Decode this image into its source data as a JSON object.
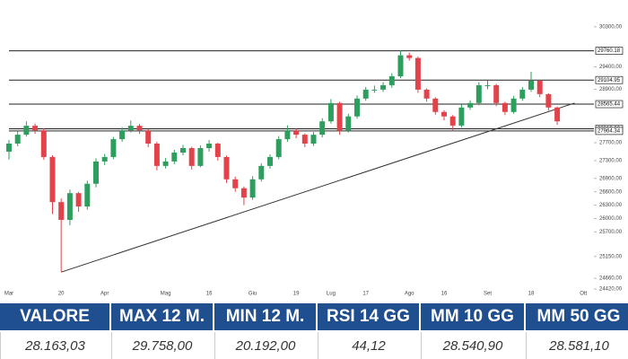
{
  "chart_data": {
    "type": "candlestick",
    "categories": [
      "Mar",
      null,
      null,
      null,
      null,
      null,
      "20",
      null,
      null,
      null,
      null,
      "Apr",
      null,
      null,
      null,
      null,
      null,
      null,
      "Mag",
      null,
      null,
      null,
      null,
      "16",
      null,
      null,
      null,
      null,
      "Giu",
      null,
      null,
      null,
      null,
      "19",
      null,
      null,
      null,
      "Lug",
      null,
      null,
      null,
      "17",
      null,
      null,
      null,
      null,
      "Ago",
      null,
      null,
      null,
      "16",
      null,
      null,
      null,
      null,
      "Set",
      null,
      null,
      null,
      null,
      "18",
      null,
      null,
      null,
      null,
      null,
      "Ott"
    ],
    "open": [
      27500,
      27680,
      27880,
      28080,
      27980,
      27380,
      26370,
      25970,
      26570,
      26270,
      26780,
      27280,
      27380,
      27780,
      27980,
      28080,
      27980,
      27680,
      27180,
      27280,
      27480,
      27580,
      27180,
      27580,
      27680,
      27380,
      26880,
      26680,
      26470,
      26880,
      27180,
      27380,
      27780,
      27980,
      27880,
      27680,
      27880,
      28180,
      28590,
      27980,
      28290,
      28690,
      28890,
      28890,
      28990,
      29190,
      29660,
      29600,
      28890,
      28690,
      28390,
      28290,
      28085,
      28490,
      28590,
      28990,
      28990,
      28590,
      28390,
      28690,
      28890,
      29090,
      28790,
      28490,
      null,
      null,
      null
    ],
    "high": [
      27760,
      27960,
      28180,
      28130,
      28020,
      27420,
      26450,
      26650,
      26600,
      26850,
      27350,
      27450,
      27830,
      28050,
      28200,
      28120,
      28010,
      27720,
      27360,
      27540,
      27650,
      27610,
      27640,
      27760,
      27700,
      27410,
      26940,
      26720,
      26950,
      27240,
      27440,
      27850,
      28090,
      28020,
      27910,
      27940,
      28250,
      28680,
      28620,
      28350,
      28760,
      28950,
      28980,
      29060,
      29260,
      29760,
      29720,
      29630,
      28920,
      28720,
      28430,
      28320,
      28560,
      28650,
      29060,
      29100,
      29020,
      28620,
      28750,
      28950,
      29290,
      29120,
      28810,
      28510,
      null,
      null,
      null
    ],
    "low": [
      27320,
      27620,
      27840,
      27900,
      27320,
      26100,
      24800,
      25850,
      26150,
      26200,
      26700,
      27200,
      27330,
      27720,
      27930,
      27900,
      27600,
      27080,
      27120,
      27220,
      27420,
      27100,
      27150,
      27500,
      27300,
      26800,
      26600,
      26300,
      26420,
      26830,
      27120,
      27330,
      27720,
      27800,
      27600,
      27630,
      27820,
      28130,
      27880,
      27930,
      28240,
      28640,
      28820,
      28840,
      28930,
      29150,
      29540,
      28820,
      28620,
      28330,
      28200,
      27980,
      28040,
      28440,
      28540,
      28900,
      28520,
      28320,
      28350,
      28640,
      28840,
      28720,
      28420,
      28100,
      null,
      null,
      null
    ],
    "close": [
      27680,
      27880,
      28080,
      27980,
      27380,
      26370,
      25970,
      26570,
      26270,
      26780,
      27280,
      27380,
      27780,
      27980,
      28080,
      27980,
      27680,
      27180,
      27280,
      27480,
      27580,
      27180,
      27580,
      27680,
      27380,
      26880,
      26680,
      26470,
      26880,
      27180,
      27380,
      27780,
      27980,
      27880,
      27680,
      27880,
      28180,
      28590,
      27980,
      28290,
      28690,
      28890,
      28890,
      28990,
      29190,
      29660,
      29600,
      28890,
      28690,
      28390,
      28290,
      28085,
      28490,
      28590,
      28990,
      28990,
      28590,
      28390,
      28690,
      28890,
      29090,
      28790,
      28490,
      28180,
      null,
      null,
      null
    ],
    "up_color": "#2e9e5e",
    "down_color": "#e2434b",
    "ylim": [
      24260,
      30900
    ],
    "yticks": [
      {
        "value": 30300,
        "label": "30300.00"
      },
      {
        "value": 29400,
        "label": "29400.00"
      },
      {
        "value": 28900,
        "label": "28900.00"
      },
      {
        "value": 27700,
        "label": "27700.00"
      },
      {
        "value": 27300,
        "label": "27300.00"
      },
      {
        "value": 26900,
        "label": "26900.00"
      },
      {
        "value": 26600,
        "label": "26600.00"
      },
      {
        "value": 26300,
        "label": "26300.00"
      },
      {
        "value": 26000,
        "label": "26000.00"
      },
      {
        "value": 25700,
        "label": "25700.00"
      },
      {
        "value": 25150,
        "label": "25150.00"
      },
      {
        "value": 24660,
        "label": "24660.00"
      },
      {
        "value": 24420,
        "label": "24420.00"
      }
    ],
    "levels": [
      29760.18,
      29104.95,
      28565.44,
      {
        "value": 28013.3,
        "label": "28013.30"
      },
      27964.34
    ],
    "trendline": [
      {
        "index": 6,
        "value": 24800
      },
      {
        "index": 65,
        "value": 28590
      }
    ]
  },
  "table": {
    "headers": [
      "VALORE",
      "MAX 12 M.",
      "MIN 12 M.",
      "RSI 14 GG",
      "MM 10 GG",
      "MM 50 GG"
    ],
    "values": [
      "28.163,03",
      "29.758,00",
      "20.192,00",
      "44,12",
      "28.540,90",
      "28.581,10"
    ]
  }
}
